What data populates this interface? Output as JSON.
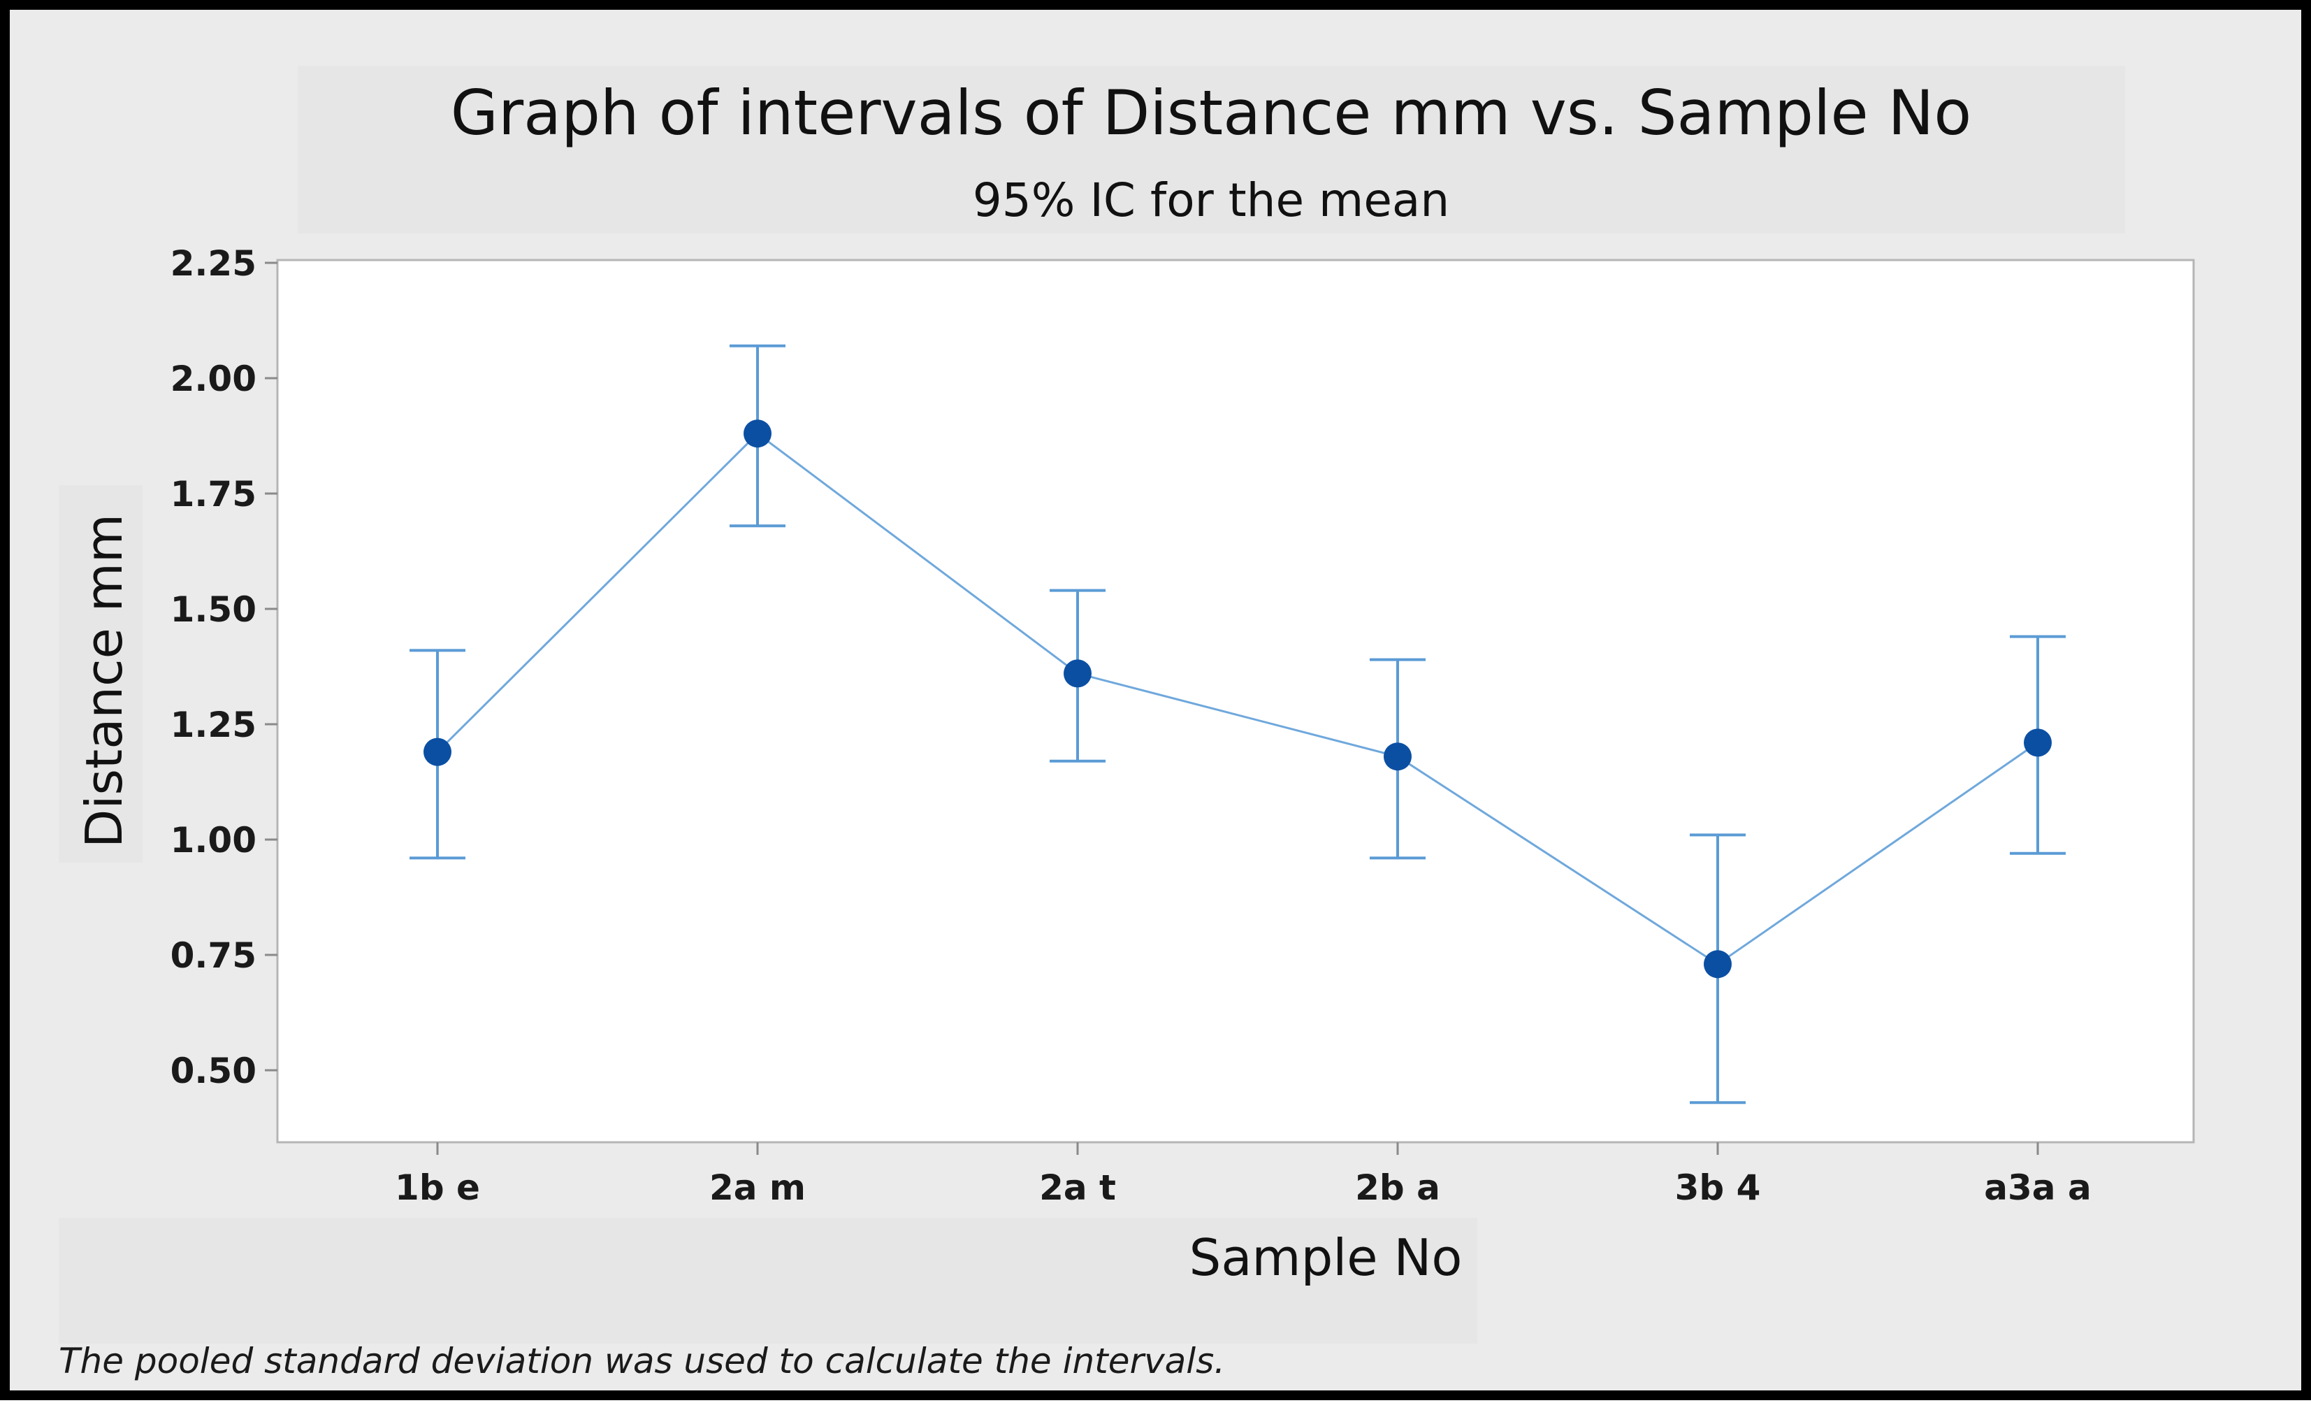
{
  "chart_data": {
    "type": "line",
    "title": "Graph of intervals of Distance mm vs. Sample No",
    "subtitle": "95% IC for the mean",
    "xlabel": "Sample No",
    "ylabel": "Distance mm",
    "categories": [
      "1b e",
      "2a m",
      "2a t",
      "2b a",
      "3b 4",
      "a3a a"
    ],
    "series": [
      {
        "values": [
          1.19,
          1.88,
          1.36,
          1.18,
          0.73,
          1.21
        ],
        "lower": [
          0.96,
          1.68,
          1.17,
          0.96,
          0.43,
          0.97
        ],
        "upper": [
          1.41,
          2.07,
          1.54,
          1.39,
          1.01,
          1.44
        ]
      }
    ],
    "ylim": [
      0.4,
      2.3
    ],
    "yticks": [
      "0.50",
      "0.75",
      "1.00",
      "1.25",
      "1.50",
      "1.75",
      "2.00",
      "2.25"
    ],
    "grid": false,
    "footnote": "The pooled standard deviation was used to calculate the intervals.",
    "colors": {
      "line": "#6fa8dc",
      "marker": "#0b4fa3",
      "errorbar": "#5b9bd5",
      "background": "#ebebeb",
      "plot_background": "#ffffff"
    }
  }
}
